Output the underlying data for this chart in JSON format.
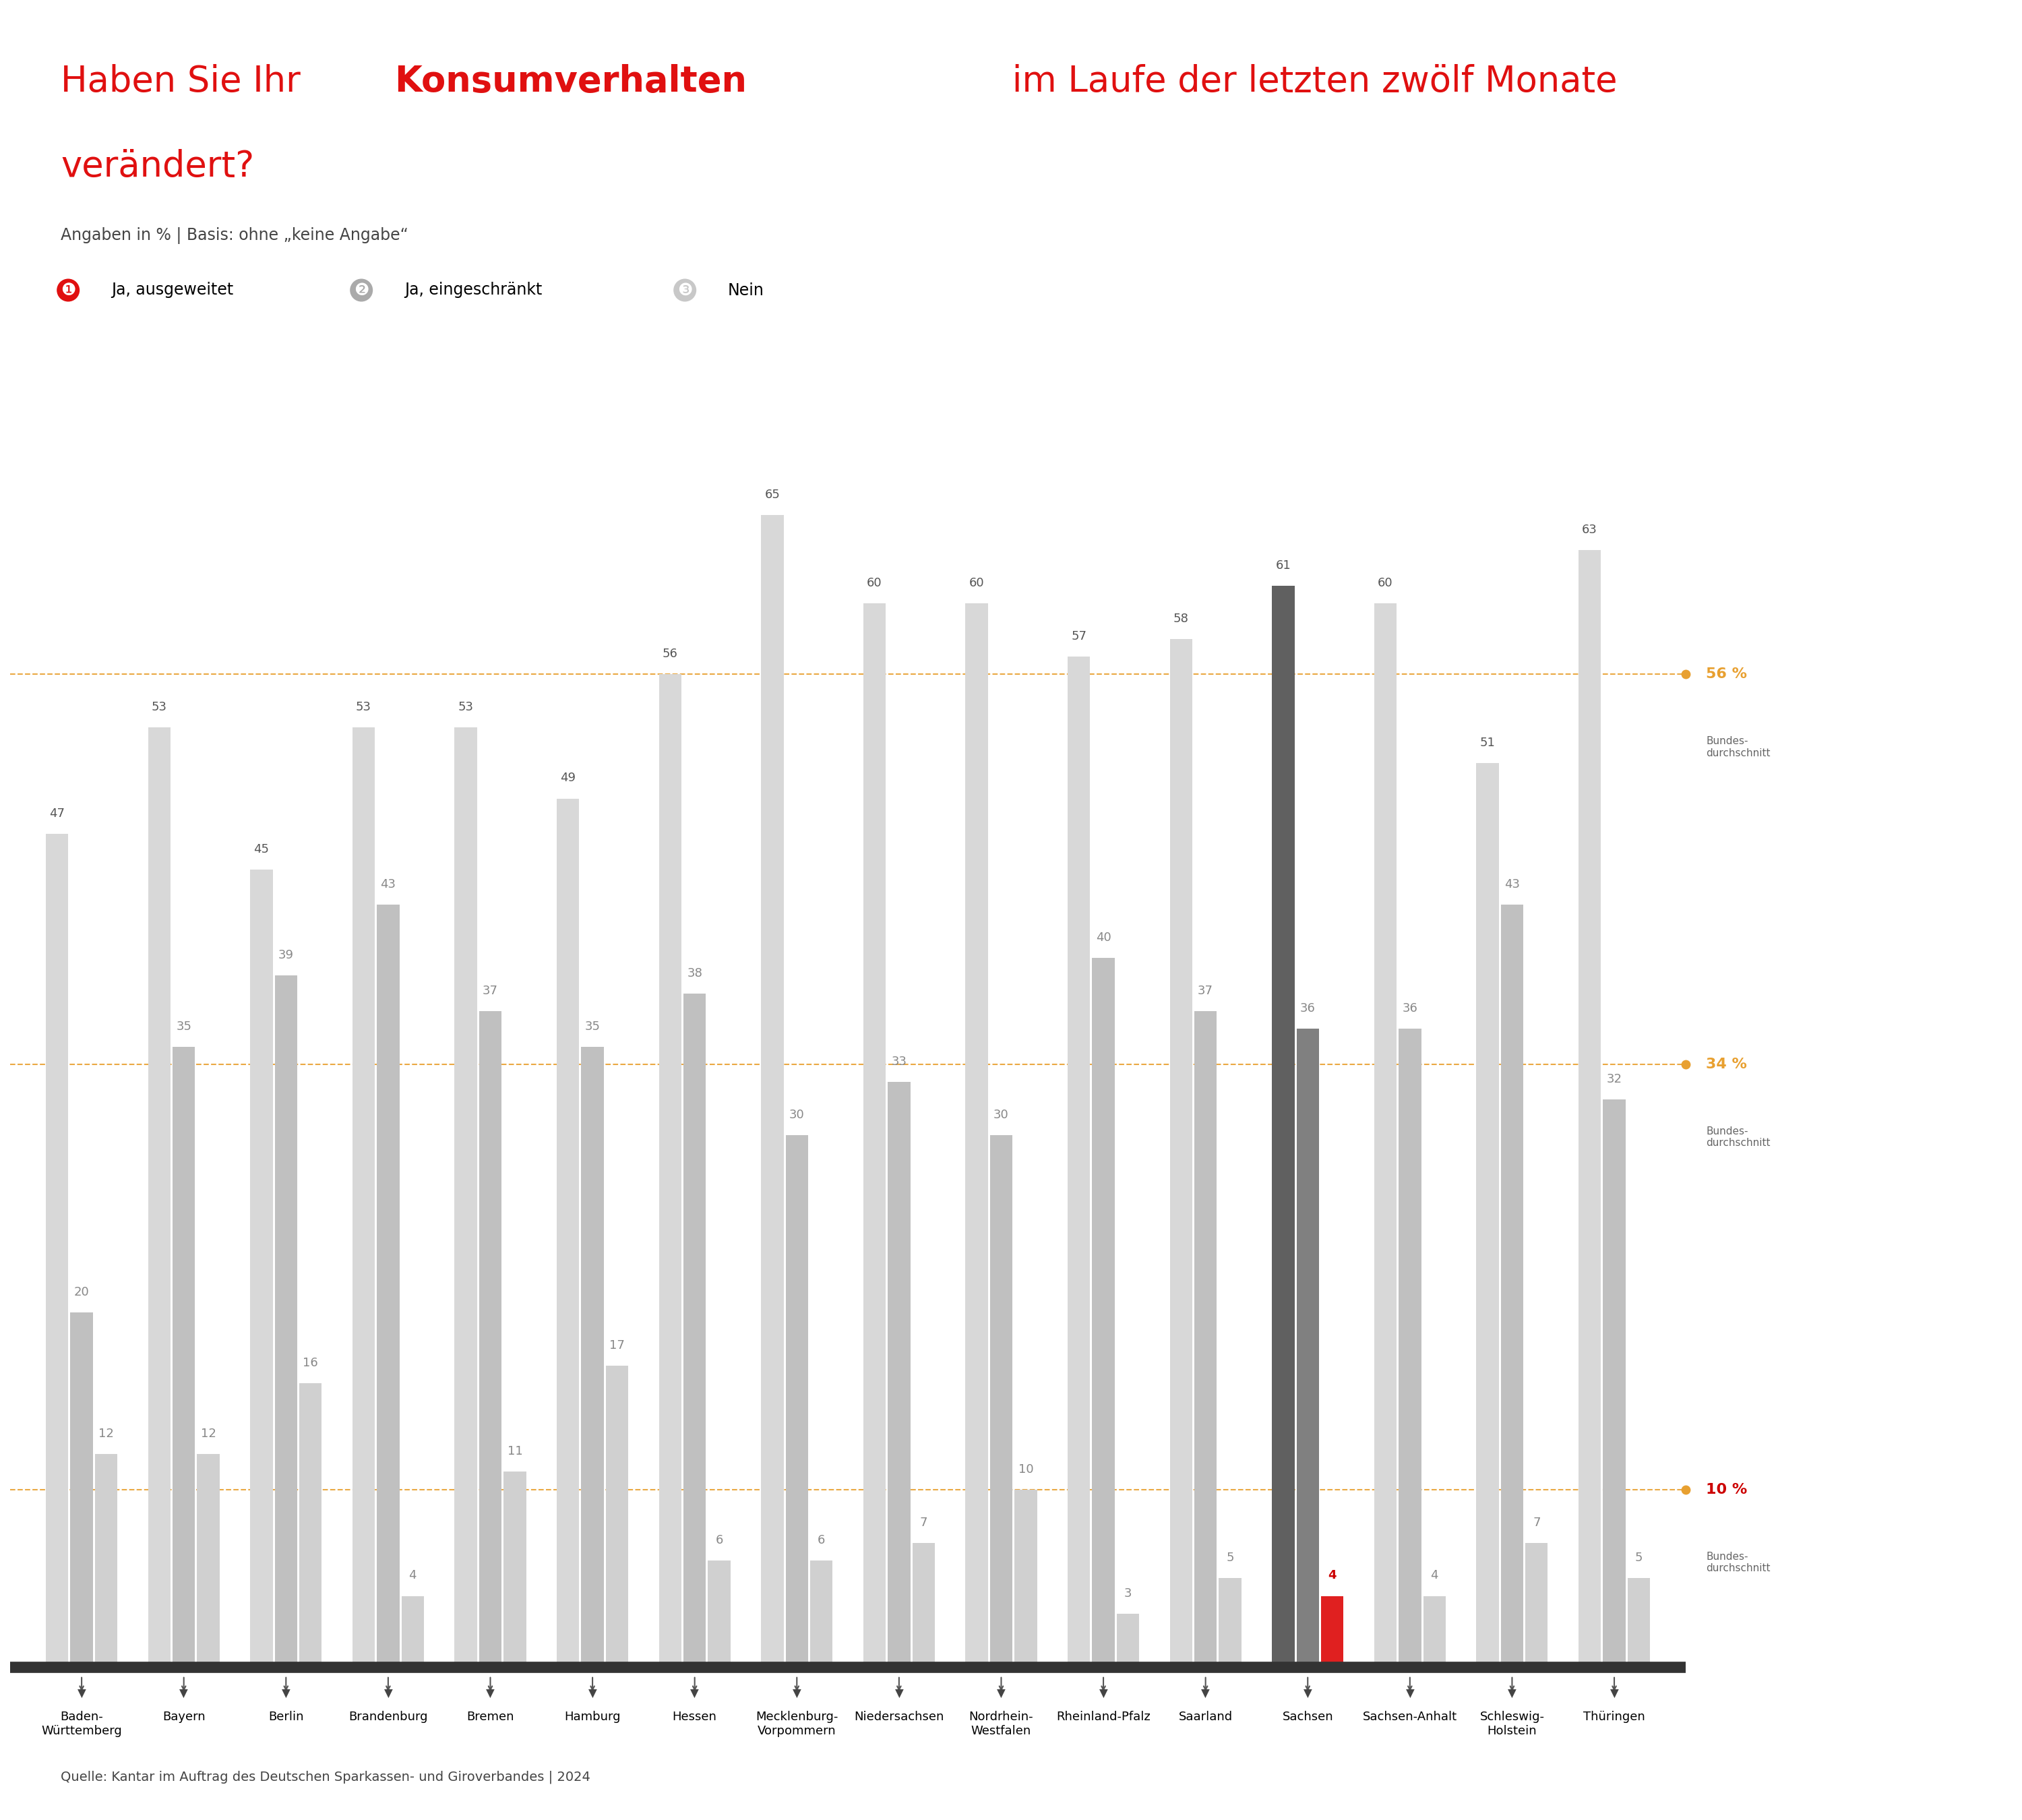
{
  "states": [
    "Baden-\nWürttemberg",
    "Bayern",
    "Berlin",
    "Brandenburg",
    "Bremen",
    "Hamburg",
    "Hessen",
    "Mecklenburg-\nVorpommern",
    "Niedersachsen",
    "Nordrhein-\nWestfalen",
    "Rheinland-Pfalz",
    "Saarland",
    "Sachsen",
    "Sachsen-Anhalt",
    "Schleswig-\nHolstein",
    "Thüringen"
  ],
  "nein": [
    47,
    53,
    45,
    53,
    53,
    49,
    56,
    65,
    60,
    60,
    57,
    58,
    61,
    60,
    51,
    63
  ],
  "eingeschraenkt": [
    20,
    35,
    39,
    43,
    37,
    35,
    38,
    30,
    33,
    30,
    40,
    37,
    36,
    36,
    43,
    32
  ],
  "ausgeweitet": [
    12,
    12,
    16,
    4,
    11,
    17,
    6,
    6,
    7,
    10,
    3,
    5,
    4,
    4,
    7,
    5
  ],
  "highlighted_state": 12,
  "title_normal": "Haben Sie Ihr ",
  "title_bold": "Konsumverhalten",
  "title_rest": " im Laufe der letzten zwölf Monate\nverändert?",
  "subtitle": "Angaben in % | Basis: ohne „keine Angabe“",
  "source": "Quelle: Kantar im Auftrag des Deutschen Sparkassen- und Giroverbandes | 2024",
  "legend": [
    "Ja, ausgeweitet",
    "Ja, eingeschränkt",
    "Nein"
  ],
  "ref_lines": [
    10,
    34,
    56
  ],
  "ref_labels": [
    "10 %",
    "34 %",
    "56 %"
  ],
  "ref_line_color": "#E8A030",
  "color_nein": "#D8D8D8",
  "color_eingeschraenkt": "#C0C0C0",
  "color_ausgeweitet": "#D0D0D0",
  "color_highlight_nein": "#606060",
  "color_highlight_eingeschraenkt": "#808080",
  "color_highlight_ausgeweitet": "#E02020",
  "color_title_red": "#E01010",
  "bar_width": 0.22,
  "bar_gap": 0.02
}
